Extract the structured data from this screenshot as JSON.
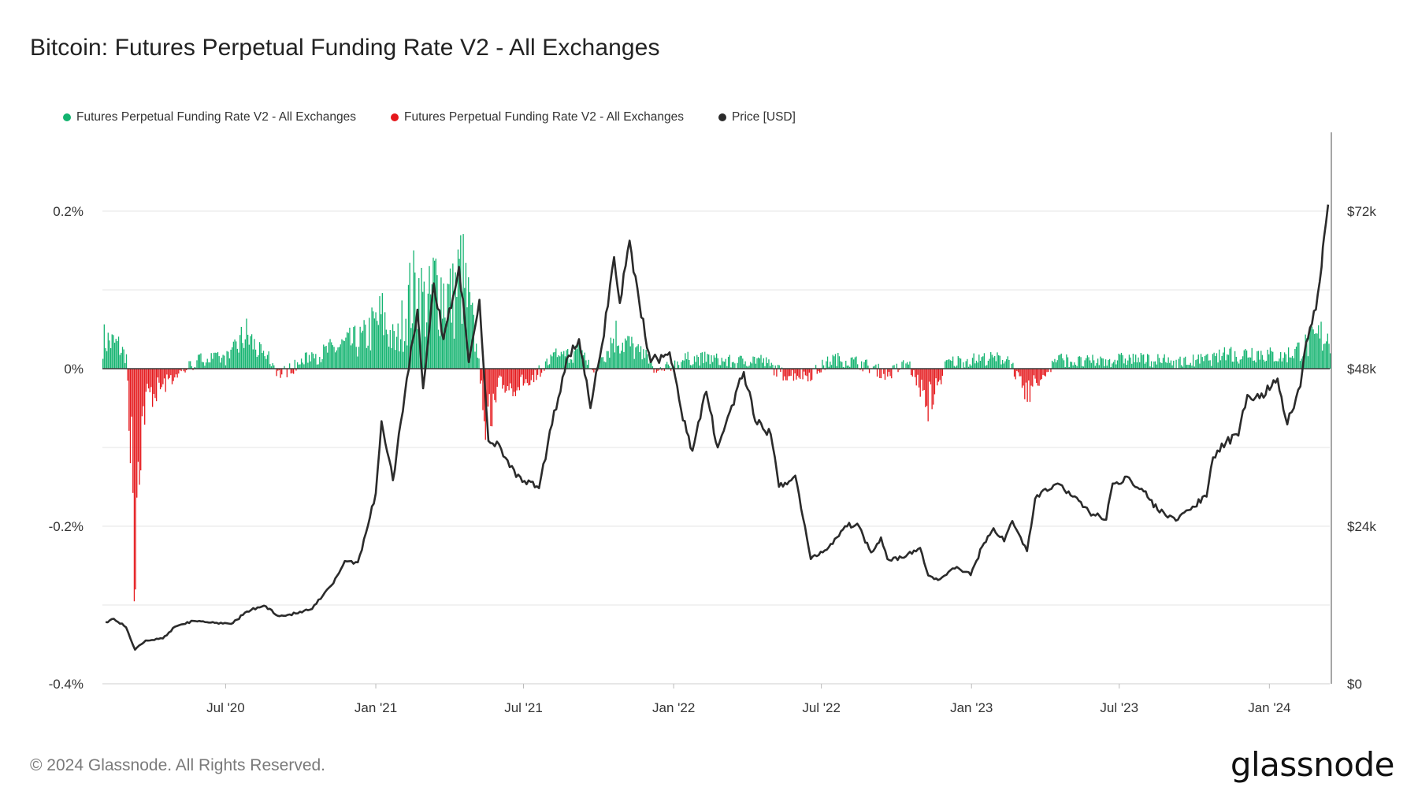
{
  "title": "Bitcoin: Futures Perpetual Funding Rate V2 - All Exchanges",
  "legend": [
    {
      "label": "Futures Perpetual Funding Rate V2 - All Exchanges",
      "color": "#12b36f"
    },
    {
      "label": "Futures Perpetual Funding Rate V2 - All Exchanges",
      "color": "#e5171b"
    },
    {
      "label": "Price [USD]",
      "color": "#2b2b2b"
    }
  ],
  "footer": "© 2024 Glassnode. All Rights Reserved.",
  "brand": "glassnode",
  "chart_data": {
    "type": "bar+line",
    "x_ticks": [
      "Jul '20",
      "Jan '21",
      "Jul '21",
      "Jan '22",
      "Jul '22",
      "Jan '23",
      "Jul '23",
      "Jan '24"
    ],
    "x_tick_dates": [
      "2020-07-01",
      "2021-01-01",
      "2021-07-01",
      "2022-01-01",
      "2022-07-01",
      "2023-01-01",
      "2023-07-01",
      "2024-01-01"
    ],
    "xlim": [
      "2020-02-01",
      "2024-03-15"
    ],
    "left_axis": {
      "ticks": [
        "0.2%",
        "0%",
        "-0.2%",
        "-0.4%"
      ],
      "tick_values": [
        0.2,
        0,
        -0.2,
        -0.4
      ],
      "ylim": [
        -0.4,
        0.3
      ]
    },
    "right_axis": {
      "ticks": [
        "$72k",
        "$48k",
        "$24k",
        "$0"
      ],
      "tick_values": [
        72000,
        48000,
        24000,
        0
      ],
      "ylim": [
        0,
        84000
      ]
    },
    "grid": true,
    "colors": {
      "positive": "#12b36f",
      "negative": "#e5171b",
      "price": "#2b2b2b"
    },
    "price_series": {
      "name": "Price [USD]",
      "points": [
        [
          "2020-02-05",
          9400
        ],
        [
          "2020-02-15",
          9900
        ],
        [
          "2020-03-01",
          8600
        ],
        [
          "2020-03-12",
          5200
        ],
        [
          "2020-03-25",
          6600
        ],
        [
          "2020-04-15",
          6900
        ],
        [
          "2020-04-30",
          8700
        ],
        [
          "2020-05-15",
          9400
        ],
        [
          "2020-06-01",
          9500
        ],
        [
          "2020-06-20",
          9300
        ],
        [
          "2020-07-10",
          9250
        ],
        [
          "2020-07-27",
          11000
        ],
        [
          "2020-08-17",
          11900
        ],
        [
          "2020-09-05",
          10300
        ],
        [
          "2020-09-25",
          10700
        ],
        [
          "2020-10-15",
          11400
        ],
        [
          "2020-10-28",
          13400
        ],
        [
          "2020-11-10",
          15300
        ],
        [
          "2020-11-24",
          18700
        ],
        [
          "2020-12-10",
          18500
        ],
        [
          "2020-12-20",
          23000
        ],
        [
          "2021-01-01",
          29000
        ],
        [
          "2021-01-08",
          40000
        ],
        [
          "2021-01-22",
          31000
        ],
        [
          "2021-02-08",
          46500
        ],
        [
          "2021-02-21",
          57000
        ],
        [
          "2021-02-28",
          45000
        ],
        [
          "2021-03-13",
          61000
        ],
        [
          "2021-03-25",
          52500
        ],
        [
          "2021-04-13",
          63500
        ],
        [
          "2021-04-25",
          49000
        ],
        [
          "2021-05-08",
          58500
        ],
        [
          "2021-05-19",
          37000
        ],
        [
          "2021-06-01",
          36500
        ],
        [
          "2021-06-22",
          31500
        ],
        [
          "2021-07-20",
          29800
        ],
        [
          "2021-08-05",
          39500
        ],
        [
          "2021-08-23",
          49500
        ],
        [
          "2021-09-07",
          52500
        ],
        [
          "2021-09-21",
          42000
        ],
        [
          "2021-10-05",
          51500
        ],
        [
          "2021-10-20",
          65000
        ],
        [
          "2021-10-27",
          58000
        ],
        [
          "2021-11-08",
          67500
        ],
        [
          "2021-11-20",
          58000
        ],
        [
          "2021-12-04",
          49000
        ],
        [
          "2021-12-27",
          50500
        ],
        [
          "2022-01-10",
          41800
        ],
        [
          "2022-01-24",
          35500
        ],
        [
          "2022-02-10",
          44500
        ],
        [
          "2022-02-24",
          36000
        ],
        [
          "2022-03-28",
          47500
        ],
        [
          "2022-04-11",
          40000
        ],
        [
          "2022-04-30",
          38000
        ],
        [
          "2022-05-10",
          30000
        ],
        [
          "2022-05-30",
          31700
        ],
        [
          "2022-06-18",
          19000
        ],
        [
          "2022-07-10",
          20800
        ],
        [
          "2022-07-30",
          24000
        ],
        [
          "2022-08-14",
          24400
        ],
        [
          "2022-08-31",
          20000
        ],
        [
          "2022-09-12",
          22300
        ],
        [
          "2022-09-20",
          19000
        ],
        [
          "2022-10-10",
          19200
        ],
        [
          "2022-10-30",
          20700
        ],
        [
          "2022-11-09",
          16500
        ],
        [
          "2022-11-21",
          15800
        ],
        [
          "2022-12-14",
          17800
        ],
        [
          "2022-12-31",
          16550
        ],
        [
          "2023-01-14",
          20900
        ],
        [
          "2023-01-28",
          23700
        ],
        [
          "2023-02-10",
          21700
        ],
        [
          "2023-02-20",
          24800
        ],
        [
          "2023-03-10",
          20200
        ],
        [
          "2023-03-20",
          28200
        ],
        [
          "2023-04-14",
          30400
        ],
        [
          "2023-04-30",
          29300
        ],
        [
          "2023-05-25",
          26200
        ],
        [
          "2023-06-15",
          25000
        ],
        [
          "2023-06-23",
          30500
        ],
        [
          "2023-07-13",
          31400
        ],
        [
          "2023-07-31",
          29300
        ],
        [
          "2023-08-17",
          26500
        ],
        [
          "2023-09-11",
          25000
        ],
        [
          "2023-09-29",
          27000
        ],
        [
          "2023-10-16",
          28500
        ],
        [
          "2023-10-24",
          34500
        ],
        [
          "2023-11-09",
          36800
        ],
        [
          "2023-11-24",
          37800
        ],
        [
          "2023-12-05",
          44000
        ],
        [
          "2023-12-20",
          43500
        ],
        [
          "2024-01-11",
          46500
        ],
        [
          "2024-01-23",
          39500
        ],
        [
          "2024-02-08",
          45300
        ],
        [
          "2024-02-15",
          52000
        ],
        [
          "2024-02-27",
          57000
        ],
        [
          "2024-03-05",
          63500
        ],
        [
          "2024-03-08",
          68000
        ],
        [
          "2024-03-13",
          73000
        ]
      ]
    },
    "funding_series": {
      "name": "Futures Perpetual Funding Rate V2 - All Exchanges",
      "unit": "%",
      "points": [
        [
          "2020-02-05",
          0.05
        ],
        [
          "2020-02-20",
          0.04
        ],
        [
          "2020-03-01",
          0.02
        ],
        [
          "2020-03-12",
          -0.31
        ],
        [
          "2020-03-14",
          -0.16
        ],
        [
          "2020-03-25",
          -0.05
        ],
        [
          "2020-04-15",
          -0.03
        ],
        [
          "2020-05-01",
          -0.01
        ],
        [
          "2020-06-01",
          0.01
        ],
        [
          "2020-07-01",
          0.01
        ],
        [
          "2020-07-25",
          0.06
        ],
        [
          "2020-08-10",
          0.03
        ],
        [
          "2020-09-05",
          -0.01
        ],
        [
          "2020-10-01",
          0.005
        ],
        [
          "2020-11-01",
          0.03
        ],
        [
          "2020-11-20",
          0.04
        ],
        [
          "2020-12-15",
          0.05
        ],
        [
          "2021-01-08",
          0.09
        ],
        [
          "2021-01-25",
          0.04
        ],
        [
          "2021-02-10",
          0.12
        ],
        [
          "2021-02-21",
          0.14
        ],
        [
          "2021-03-05",
          0.1
        ],
        [
          "2021-03-13",
          0.15
        ],
        [
          "2021-04-05",
          0.12
        ],
        [
          "2021-04-15",
          0.17
        ],
        [
          "2021-05-01",
          0.06
        ],
        [
          "2021-05-19",
          -0.12
        ],
        [
          "2021-06-01",
          -0.03
        ],
        [
          "2021-06-22",
          -0.03
        ],
        [
          "2021-07-15",
          -0.01
        ],
        [
          "2021-08-15",
          0.02
        ],
        [
          "2021-09-05",
          0.03
        ],
        [
          "2021-09-25",
          -0.01
        ],
        [
          "2021-10-10",
          0.03
        ],
        [
          "2021-10-20",
          0.06
        ],
        [
          "2021-11-08",
          0.04
        ],
        [
          "2021-11-25",
          0.02
        ],
        [
          "2021-12-10",
          -0.01
        ],
        [
          "2022-01-15",
          0.01
        ],
        [
          "2022-02-15",
          0.01
        ],
        [
          "2022-03-15",
          0.005
        ],
        [
          "2022-04-15",
          0.01
        ],
        [
          "2022-05-15",
          -0.01
        ],
        [
          "2022-06-18",
          -0.01
        ],
        [
          "2022-07-15",
          0.01
        ],
        [
          "2022-08-15",
          0.005
        ],
        [
          "2022-09-20",
          -0.01
        ],
        [
          "2022-10-15",
          0.005
        ],
        [
          "2022-11-09",
          -0.06
        ],
        [
          "2022-12-01",
          0.005
        ],
        [
          "2023-01-15",
          0.01
        ],
        [
          "2023-02-15",
          0.01
        ],
        [
          "2023-03-10",
          -0.04
        ],
        [
          "2023-04-15",
          0.01
        ],
        [
          "2023-05-15",
          0.005
        ],
        [
          "2023-07-15",
          0.01
        ],
        [
          "2023-09-15",
          0.005
        ],
        [
          "2023-10-25",
          0.01
        ],
        [
          "2023-11-15",
          0.02
        ],
        [
          "2023-12-10",
          0.03
        ],
        [
          "2024-01-15",
          0.02
        ],
        [
          "2024-02-15",
          0.04
        ],
        [
          "2024-03-08",
          0.06
        ]
      ]
    }
  }
}
